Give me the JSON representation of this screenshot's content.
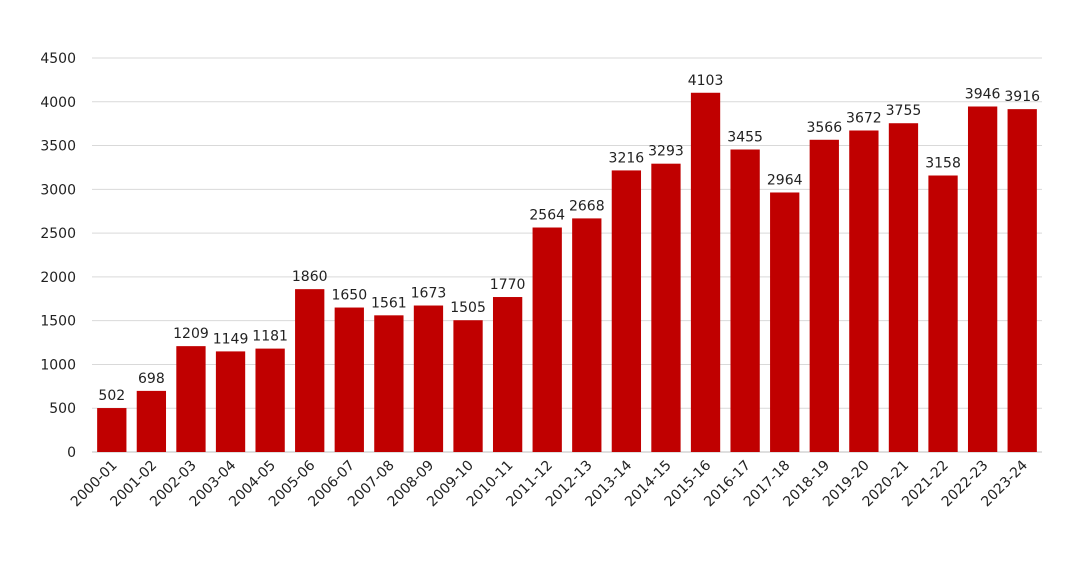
{
  "chart_data": {
    "type": "bar",
    "categories": [
      "2000-01",
      "2001-02",
      "2002-03",
      "2003-04",
      "2004-05",
      "2005-06",
      "2006-07",
      "2007-08",
      "2008-09",
      "2009-10",
      "2010-11",
      "2011-12",
      "2012-13",
      "2013-14",
      "2014-15",
      "2015-16",
      "2016-17",
      "2017-18",
      "2018-19",
      "2019-20",
      "2020-21",
      "2021-22",
      "2022-23",
      "2023-24"
    ],
    "values": [
      502,
      698,
      1209,
      1149,
      1181,
      1860,
      1650,
      1561,
      1673,
      1505,
      1770,
      2564,
      2668,
      3216,
      3293,
      4103,
      3455,
      2964,
      3566,
      3672,
      3755,
      3158,
      3946,
      3916
    ],
    "title": "",
    "xlabel": "",
    "ylabel": "",
    "ylim": [
      0,
      4500
    ],
    "yticks": [
      0,
      500,
      1000,
      1500,
      2000,
      2500,
      3000,
      3500,
      4000,
      4500
    ],
    "grid": true,
    "data_labels": true,
    "bar_color": "#c00000"
  }
}
